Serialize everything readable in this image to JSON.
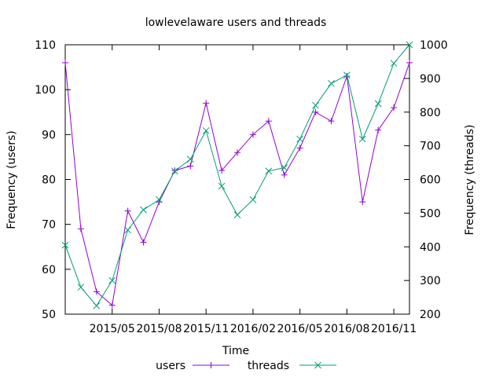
{
  "chart_data": {
    "type": "line",
    "title": "lowlevelaware users and threads",
    "xlabel": "Time",
    "ylabel": "Frequency (users)",
    "y2label": "Frequency (threads)",
    "x": [
      "2015-02",
      "2015-03",
      "2015-04",
      "2015-05",
      "2015-06",
      "2015-07",
      "2015-08",
      "2015-09",
      "2015-10",
      "2015-11",
      "2015-12",
      "2016-01",
      "2016-02",
      "2016-03",
      "2016-04",
      "2016-05",
      "2016-06",
      "2016-07",
      "2016-08",
      "2016-09",
      "2016-10",
      "2016-11",
      "2016-12"
    ],
    "xlim": [
      "2015-02",
      "2016-12"
    ],
    "xticks": [
      {
        "pos": "2015-05",
        "label": "2015/05"
      },
      {
        "pos": "2015-08",
        "label": "2015/08"
      },
      {
        "pos": "2015-11",
        "label": "2015/11"
      },
      {
        "pos": "2016-02",
        "label": "2016/02"
      },
      {
        "pos": "2016-05",
        "label": "2016/05"
      },
      {
        "pos": "2016-08",
        "label": "2016/08"
      },
      {
        "pos": "2016-11",
        "label": "2016/11"
      }
    ],
    "ylim": [
      50,
      110
    ],
    "yticks": [
      50,
      60,
      70,
      80,
      90,
      100,
      110
    ],
    "y2lim": [
      200,
      1000
    ],
    "y2ticks": [
      200,
      300,
      400,
      500,
      600,
      700,
      800,
      900,
      1000
    ],
    "grid": false,
    "legend": "bottom-center",
    "series": [
      {
        "name": "users",
        "axis": "left",
        "color": "#9400d3",
        "marker": "plus",
        "values": [
          106,
          69,
          55,
          52,
          73,
          66,
          75,
          82,
          83,
          97,
          82,
          86,
          90,
          93,
          81,
          87,
          95,
          93,
          103,
          75,
          91,
          96,
          106
        ]
      },
      {
        "name": "threads",
        "axis": "right",
        "color": "#009e73",
        "marker": "cross",
        "values": [
          405,
          280,
          225,
          300,
          450,
          510,
          540,
          625,
          660,
          745,
          580,
          495,
          540,
          625,
          635,
          720,
          820,
          885,
          910,
          720,
          825,
          945,
          1000
        ]
      }
    ]
  }
}
